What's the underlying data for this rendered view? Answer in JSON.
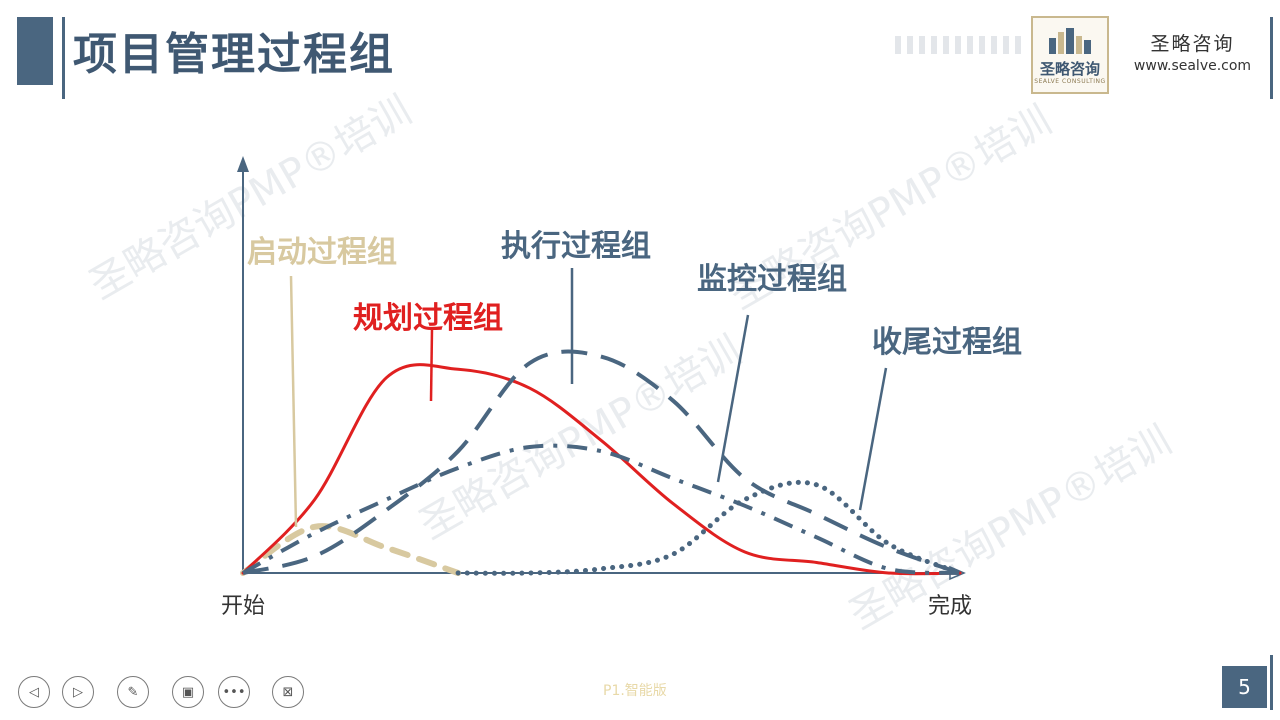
{
  "header": {
    "title": "项目管理过程组",
    "logo_text": "圣略咨询",
    "logo_subtext": "SEALVE CONSULTING",
    "company_name": "圣略咨询",
    "company_url": "www.sealve.com"
  },
  "watermark": "圣略咨询PMP®培训",
  "chart_data": {
    "type": "line",
    "xlabel_start": "开始",
    "xlabel_end": "完成",
    "x": [
      0,
      10,
      20,
      30,
      40,
      50,
      60,
      70,
      80,
      90,
      100
    ],
    "ylim": [
      0,
      1
    ],
    "series": [
      {
        "name": "启动过程组",
        "color": "#d8c9a0",
        "style": "dashed-thick",
        "values": [
          0,
          0.22,
          0.12,
          0,
          0,
          0,
          0,
          0,
          0,
          0,
          0
        ]
      },
      {
        "name": "规划过程组",
        "color": "#e02020",
        "style": "solid",
        "values": [
          0,
          0.35,
          0.93,
          0.97,
          0.88,
          0.63,
          0.33,
          0.1,
          0.05,
          0,
          0
        ]
      },
      {
        "name": "执行过程组",
        "color": "#4a6680",
        "style": "dashed",
        "values": [
          0,
          0.08,
          0.3,
          0.58,
          1.0,
          1.03,
          0.82,
          0.45,
          0.28,
          0.12,
          0
        ]
      },
      {
        "name": "监控过程组",
        "color": "#4a6680",
        "style": "dash-dot",
        "values": [
          0,
          0.19,
          0.35,
          0.5,
          0.6,
          0.58,
          0.45,
          0.32,
          0.17,
          0.02,
          0
        ]
      },
      {
        "name": "收尾过程组",
        "color": "#4a6680",
        "style": "dotted",
        "values": [
          0,
          0,
          0,
          0,
          0,
          0.02,
          0.09,
          0.35,
          0.42,
          0.14,
          0
        ]
      }
    ]
  },
  "footer": {
    "slide_number": "5",
    "mark": "P1.智能版",
    "nav_icons": [
      "previous-icon",
      "next-icon",
      "pen-icon",
      "slide-icon",
      "more-icon",
      "exit-icon"
    ]
  }
}
